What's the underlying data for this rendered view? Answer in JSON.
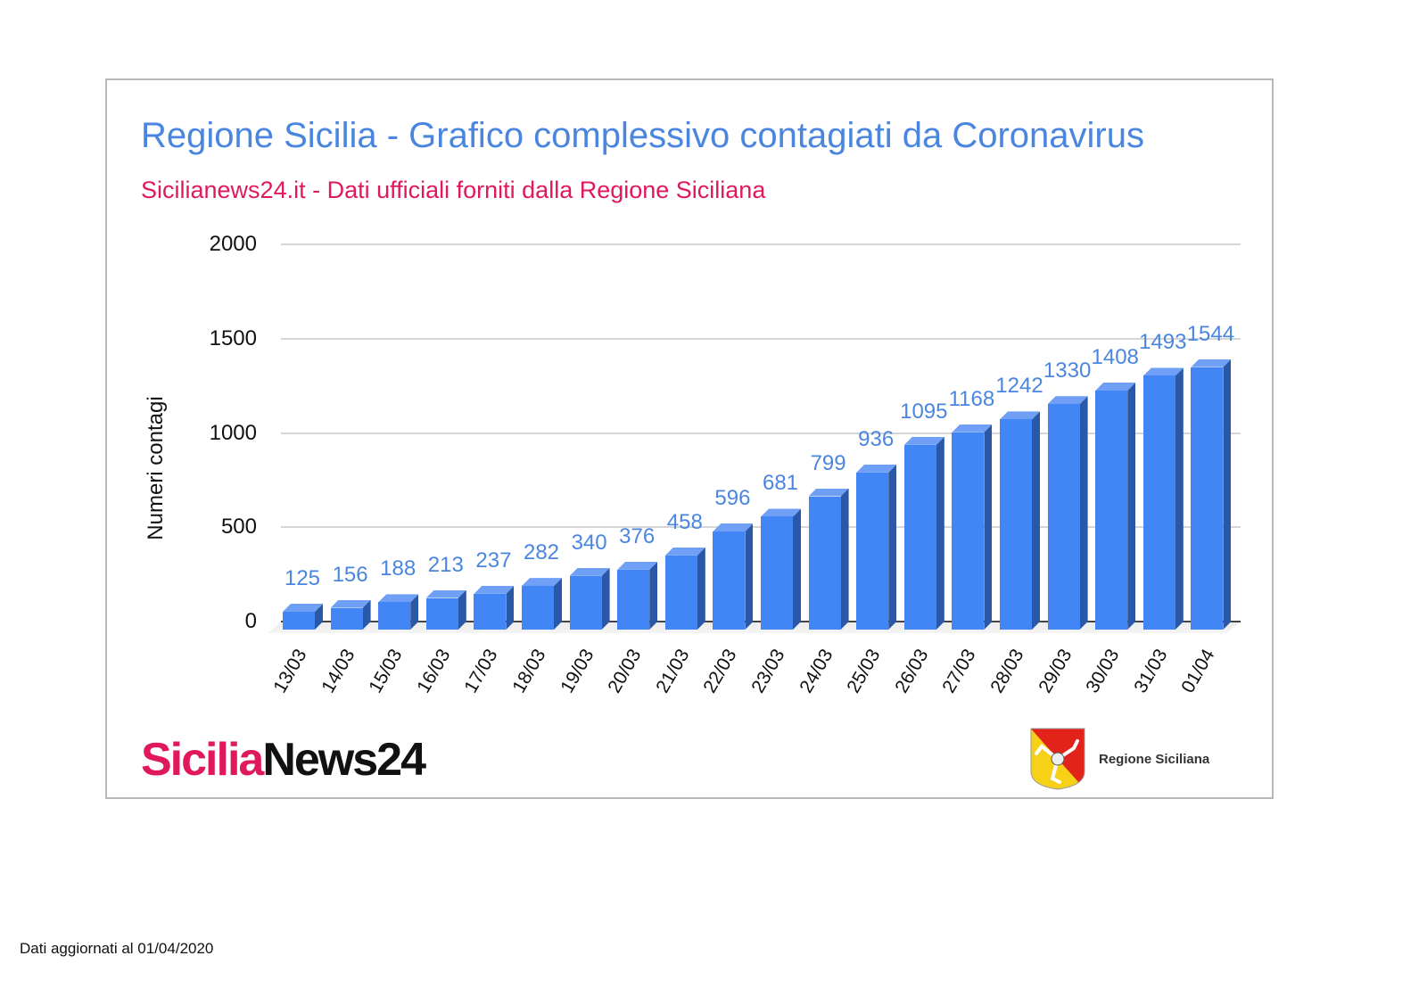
{
  "header": {
    "title": "Regione Sicilia - Grafico complessivo contagiati da Coronavirus",
    "subtitle": "Sicilianews24.it - Dati ufficiali forniti dalla Regione Siciliana"
  },
  "axis": {
    "ylabel": "Numeri contagi",
    "yticks": [
      "0",
      "500",
      "1000",
      "1500",
      "2000"
    ]
  },
  "logos": {
    "left_part1": "Sicilia",
    "left_part2": "News24",
    "right_label": "Regione Siciliana"
  },
  "footer": {
    "note": "Dati aggiornati al 01/04/2020"
  },
  "colors": {
    "title": "#4a86e0",
    "subtitle": "#e0195a",
    "bar_front": "#4285f4",
    "bar_side": "#2b58a6",
    "bar_top": "#6fa0f6",
    "value_label": "#4a86e0"
  },
  "chart_data": {
    "type": "bar",
    "title": "Regione Sicilia - Grafico complessivo contagiati da Coronavirus",
    "subtitle": "Sicilianews24.it - Dati ufficiali forniti dalla Regione Siciliana",
    "xlabel": "",
    "ylabel": "Numeri contagi",
    "ylim": [
      0,
      2000
    ],
    "yticks": [
      0,
      500,
      1000,
      1500,
      2000
    ],
    "grid": true,
    "legend": null,
    "style": "3d",
    "categories": [
      "13/03",
      "14/03",
      "15/03",
      "16/03",
      "17/03",
      "18/03",
      "19/03",
      "20/03",
      "21/03",
      "22/03",
      "23/03",
      "24/03",
      "25/03",
      "26/03",
      "27/03",
      "28/03",
      "29/03",
      "30/03",
      "31/03",
      "01/04"
    ],
    "values": [
      125,
      156,
      188,
      213,
      237,
      282,
      340,
      376,
      458,
      596,
      681,
      799,
      936,
      1095,
      1168,
      1242,
      1330,
      1408,
      1493,
      1544
    ],
    "data_labels": [
      "125",
      "156",
      "188",
      "213",
      "237",
      "282",
      "340",
      "376",
      "458",
      "596",
      "681",
      "799",
      "936",
      "1095",
      "1168",
      "1242",
      "1330",
      "1408",
      "1493",
      "1544"
    ]
  }
}
